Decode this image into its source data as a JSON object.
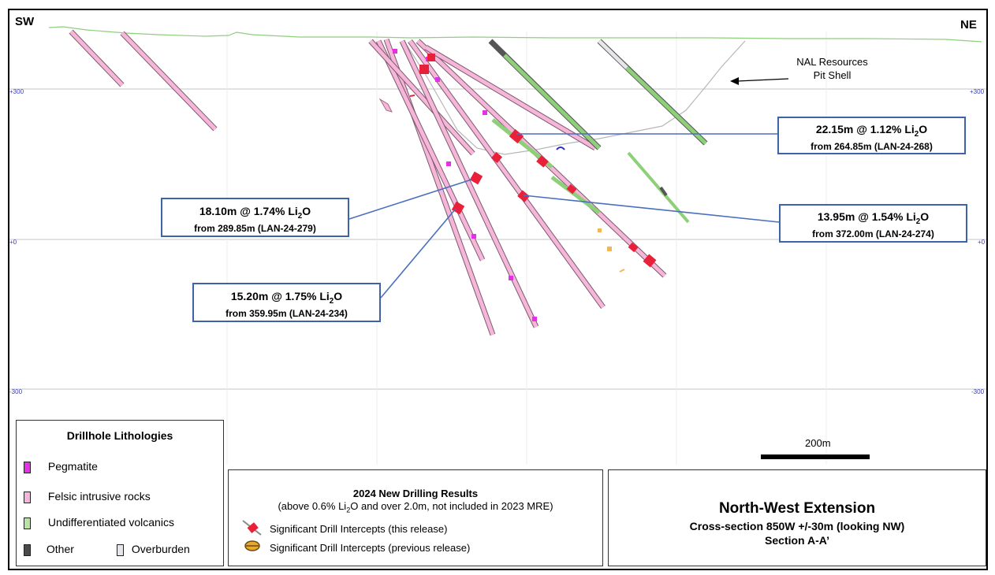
{
  "section": {
    "sw_label": "SW",
    "ne_label": "NE",
    "elevations": [
      "+300",
      "+0",
      "-300"
    ],
    "pit_shell_label_line1": "NAL Resources",
    "pit_shell_label_line2": "Pit Shell",
    "scale_bar_label": "200m"
  },
  "callouts": [
    {
      "interval": "22.15m @ 1.12% Li",
      "tail": "O",
      "from": "from 264.85m  (LAN-24-268)"
    },
    {
      "interval": "18.10m @ 1.74% Li",
      "tail": "O",
      "from": "from 289.85m  (LAN-24-279)"
    },
    {
      "interval": "13.95m @ 1.54% Li",
      "tail": "O",
      "from": "from 372.00m  (LAN-24-274)"
    },
    {
      "interval": "15.20m @ 1.75% Li",
      "tail": "O",
      "from": "from 359.95m  (LAN-24-234)"
    }
  ],
  "legend": {
    "title": "Drillhole Lithologies",
    "items": [
      {
        "label": "Pegmatite",
        "color": "#e531e5"
      },
      {
        "label": "Felsic intrusive rocks",
        "color": "#f6b6da"
      },
      {
        "label": "Undifferentiated volcanics",
        "color": "#b7e3a7"
      },
      {
        "label": "Other",
        "color": "#4a4a4a"
      },
      {
        "label": "Overburden",
        "color": "#e6e6ea"
      }
    ]
  },
  "results": {
    "title": "2024 New Drilling Results",
    "subtitle_a": "(above 0.6% Li",
    "subtitle_b": "O and over 2.0m, not included in 2023 MRE)",
    "item1": "Significant Drill Intercepts (this release)",
    "item2": "Significant Drill Intercepts (previous release)"
  },
  "title_block": {
    "title": "North-West Extension",
    "line2": "Cross-section 850W +/-30m (looking NW)",
    "line3": "Section A-A’"
  }
}
